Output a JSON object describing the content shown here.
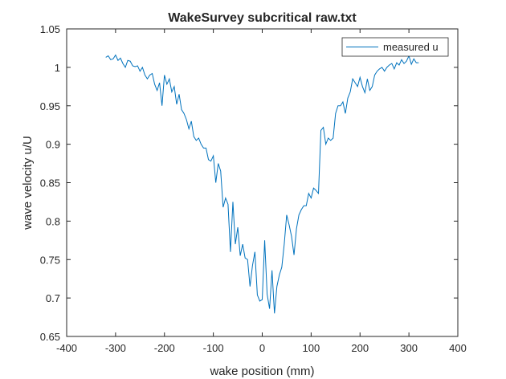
{
  "chart_data": {
    "type": "line",
    "title": "WakeSurvey subcritical raw.txt",
    "xlabel": "wake position (mm)",
    "ylabel": "wave velocity u/U",
    "xlim": [
      -400,
      400
    ],
    "ylim": [
      0.65,
      1.05
    ],
    "xticks": [
      -400,
      -300,
      -200,
      -100,
      0,
      100,
      200,
      300,
      400
    ],
    "yticks": [
      0.65,
      0.7,
      0.75,
      0.8,
      0.85,
      0.9,
      0.95,
      1,
      1.05
    ],
    "xtick_labels": [
      "-400",
      "-300",
      "-200",
      "-100",
      "0",
      "100",
      "200",
      "300",
      "400"
    ],
    "ytick_labels": [
      "0.65",
      "0.7",
      "0.75",
      "0.8",
      "0.85",
      "0.9",
      "0.95",
      "1",
      "1.05"
    ],
    "grid": false,
    "legend_position": "top-right",
    "series": [
      {
        "name": "measured u",
        "color": "#0072BD",
        "x": [
          -320,
          -315,
          -310,
          -305,
          -300,
          -295,
          -290,
          -285,
          -280,
          -275,
          -270,
          -265,
          -260,
          -255,
          -250,
          -245,
          -240,
          -235,
          -230,
          -225,
          -220,
          -215,
          -210,
          -205,
          -200,
          -195,
          -190,
          -185,
          -180,
          -175,
          -170,
          -165,
          -160,
          -155,
          -150,
          -145,
          -140,
          -135,
          -130,
          -125,
          -120,
          -115,
          -110,
          -105,
          -100,
          -95,
          -90,
          -85,
          -80,
          -75,
          -70,
          -65,
          -60,
          -55,
          -50,
          -45,
          -40,
          -35,
          -30,
          -25,
          -20,
          -15,
          -10,
          -5,
          0,
          5,
          10,
          15,
          20,
          25,
          30,
          35,
          40,
          45,
          50,
          55,
          60,
          65,
          70,
          75,
          80,
          85,
          90,
          95,
          100,
          105,
          110,
          115,
          120,
          125,
          130,
          135,
          140,
          145,
          150,
          155,
          160,
          165,
          170,
          175,
          180,
          185,
          190,
          195,
          200,
          205,
          210,
          215,
          220,
          225,
          230,
          235,
          240,
          245,
          250,
          255,
          260,
          265,
          270,
          275,
          280,
          285,
          290,
          295,
          300,
          305,
          310,
          315,
          320
        ],
        "y": [
          1.013,
          1.015,
          1.01,
          1.011,
          1.016,
          1.009,
          1.012,
          1.005,
          1.0,
          1.009,
          1.008,
          1.002,
          1.001,
          1.002,
          0.995,
          1.0,
          0.99,
          0.985,
          0.99,
          0.992,
          0.978,
          0.97,
          0.98,
          0.95,
          0.99,
          0.978,
          0.985,
          0.968,
          0.975,
          0.952,
          0.965,
          0.945,
          0.94,
          0.932,
          0.92,
          0.93,
          0.91,
          0.905,
          0.908,
          0.9,
          0.895,
          0.895,
          0.88,
          0.878,
          0.885,
          0.85,
          0.875,
          0.865,
          0.818,
          0.83,
          0.822,
          0.76,
          0.825,
          0.77,
          0.792,
          0.755,
          0.77,
          0.752,
          0.75,
          0.715,
          0.742,
          0.76,
          0.704,
          0.696,
          0.698,
          0.775,
          0.705,
          0.686,
          0.736,
          0.68,
          0.715,
          0.73,
          0.74,
          0.77,
          0.808,
          0.795,
          0.78,
          0.756,
          0.79,
          0.808,
          0.815,
          0.82,
          0.82,
          0.836,
          0.83,
          0.843,
          0.84,
          0.836,
          0.918,
          0.922,
          0.9,
          0.908,
          0.905,
          0.908,
          0.94,
          0.95,
          0.95,
          0.955,
          0.94,
          0.96,
          0.968,
          0.985,
          0.98,
          0.975,
          0.987,
          0.975,
          0.967,
          0.985,
          0.97,
          0.975,
          0.99,
          0.995,
          0.998,
          1.0,
          0.995,
          1.0,
          1.003,
          1.005,
          0.998,
          1.006,
          1.003,
          1.01,
          1.005,
          1.008,
          1.015,
          1.004,
          1.011,
          1.006,
          1.006
        ]
      }
    ]
  }
}
